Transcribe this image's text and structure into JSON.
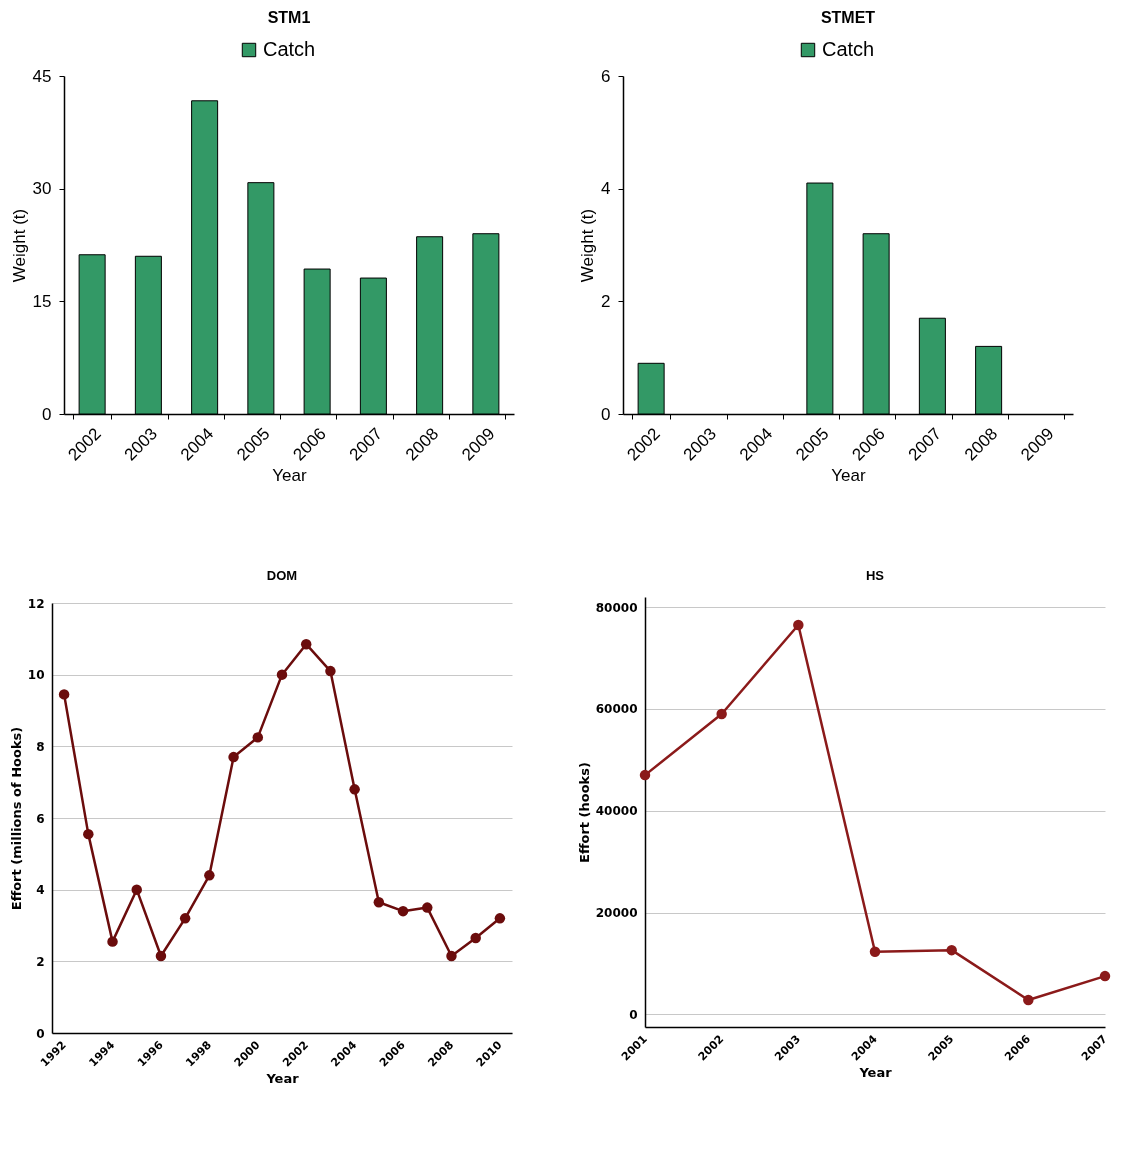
{
  "chart_data": [
    {
      "type": "bar",
      "title": "STM1",
      "xlabel": "Year",
      "ylabel": "Weight (t)",
      "categories": [
        "2002",
        "2003",
        "2004",
        "2005",
        "2006",
        "2007",
        "2008",
        "2009"
      ],
      "series": [
        {
          "name": "Catch",
          "color": "#339966",
          "values": [
            21.2,
            21.0,
            41.7,
            30.8,
            19.3,
            18.1,
            23.6,
            24.0
          ]
        }
      ],
      "ylim": [
        0,
        45
      ],
      "yticks": [
        0,
        15,
        30,
        45
      ],
      "grid": false,
      "legend": "top"
    },
    {
      "type": "bar",
      "title": "STMET",
      "xlabel": "Year",
      "ylabel": "Weight (t)",
      "categories": [
        "2002",
        "2003",
        "2004",
        "2005",
        "2006",
        "2007",
        "2008",
        "2009"
      ],
      "series": [
        {
          "name": "Catch",
          "color": "#339966",
          "values": [
            0.9,
            null,
            null,
            4.1,
            3.2,
            1.7,
            1.2,
            null
          ]
        }
      ],
      "ylim": [
        0,
        6
      ],
      "yticks": [
        0,
        2,
        4,
        6
      ],
      "grid": false,
      "legend": "top"
    },
    {
      "type": "line",
      "title": "DOM",
      "xlabel": "Year",
      "ylabel": "Effort (millions of Hooks)",
      "x": [
        1992,
        1993,
        1994,
        1995,
        1996,
        1997,
        1998,
        1999,
        2000,
        2001,
        2002,
        2003,
        2004,
        2005,
        2006,
        2007,
        2008,
        2009,
        2010
      ],
      "series": [
        {
          "color": "#6b0c0c",
          "values": [
            9.45,
            5.55,
            2.55,
            4.0,
            2.15,
            3.2,
            4.4,
            7.7,
            8.25,
            10.0,
            10.85,
            10.1,
            6.8,
            3.65,
            3.4,
            3.5,
            2.15,
            2.65,
            3.2
          ]
        }
      ],
      "xlim": [
        1991.5,
        2010.5
      ],
      "xticks": [
        1992,
        1994,
        1996,
        1998,
        2000,
        2002,
        2004,
        2006,
        2008,
        2010
      ],
      "ylim": [
        0,
        12
      ],
      "yticks": [
        0,
        2,
        4,
        6,
        8,
        10,
        12
      ],
      "grid": "y",
      "marker": "circle",
      "line_style": "solid"
    },
    {
      "type": "line",
      "title": "HS",
      "xlabel": "Year",
      "ylabel": "Effort (hooks)",
      "x": [
        2001,
        2002,
        2003,
        2004,
        2005,
        2006,
        2007
      ],
      "series": [
        {
          "color": "#8b1a1a",
          "values": [
            47000,
            59000,
            76500,
            12300,
            12600,
            2800,
            7500
          ]
        }
      ],
      "xlim": [
        2001,
        2007
      ],
      "xticks": [
        2001,
        2002,
        2003,
        2004,
        2005,
        2006,
        2007
      ],
      "ylim": [
        -2500,
        82000
      ],
      "yticks": [
        0,
        20000,
        40000,
        60000,
        80000
      ],
      "grid": "y",
      "marker": "circle",
      "line_style": "solid"
    }
  ]
}
